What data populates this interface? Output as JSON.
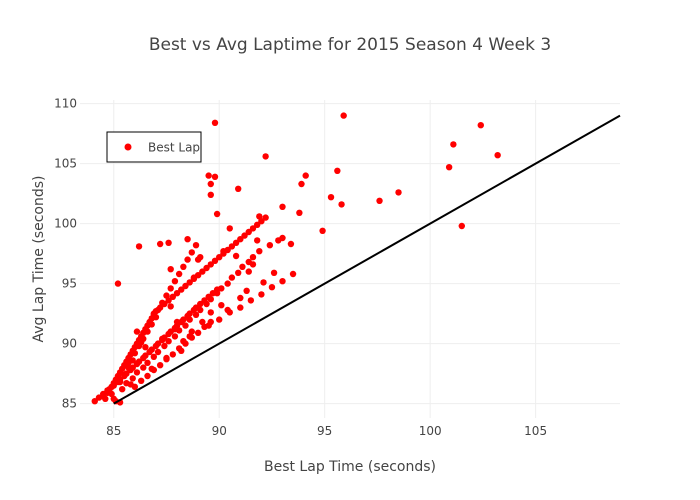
{
  "chart_data": {
    "type": "scatter",
    "title": "Best vs Avg Laptime for 2015 Season 4 Week 3",
    "xlabel": "Best Lap Time (seconds)",
    "ylabel": "Avg Lap Time (seconds)",
    "xlim": [
      83.4,
      109.0
    ],
    "ylim": [
      83.8,
      110.3
    ],
    "xticks": [
      85,
      90,
      95,
      100,
      105
    ],
    "yticks": [
      85,
      90,
      95,
      100,
      105,
      110
    ],
    "grid": true,
    "legend_position": "top-left",
    "reference_line": {
      "x": [
        85,
        109
      ],
      "y": [
        85,
        109
      ],
      "color": "#000000"
    },
    "series": [
      {
        "name": "Best Lap",
        "color": "#ff0000",
        "marker": "circle",
        "x": [
          89.8,
          95.9,
          102.4,
          101.1,
          103.2,
          88.8,
          92.2,
          89.5,
          100.9,
          89.6,
          89.8,
          90.9,
          94.1,
          93.9,
          95.6,
          95.3,
          95.8,
          97.6,
          98.5,
          93.0,
          93.8,
          91.9,
          94.9,
          101.5,
          89.6,
          89.9,
          90.5,
          87.6,
          86.2,
          87.2,
          88.5,
          85.2,
          91.8,
          92.4,
          92.8,
          93.0,
          93.4,
          89.1,
          90.2,
          90.8,
          91.4,
          91.6,
          89.0,
          87.7,
          88.8,
          85.1,
          85.3,
          84.6,
          84.9,
          84.1,
          84.3,
          84.5,
          84.7,
          84.9,
          85.0,
          85.1,
          85.2,
          85.3,
          85.4,
          85.5,
          85.6,
          85.7,
          85.8,
          85.9,
          86.0,
          86.1,
          86.2,
          86.3,
          86.4,
          86.5,
          86.6,
          86.7,
          86.8,
          86.9,
          87.0,
          87.2,
          87.4,
          87.6,
          87.8,
          88.0,
          88.2,
          88.4,
          88.6,
          88.8,
          89.0,
          89.2,
          89.4,
          89.6,
          89.8,
          90.0,
          90.2,
          90.4,
          90.6,
          90.8,
          91.0,
          91.2,
          91.4,
          91.6,
          91.8,
          92.0,
          92.2,
          84.5,
          84.7,
          84.8,
          85.0,
          85.2,
          85.3,
          85.5,
          85.6,
          85.8,
          85.9,
          86.1,
          86.2,
          86.4,
          86.5,
          86.7,
          86.8,
          87.0,
          87.1,
          87.3,
          87.4,
          87.6,
          87.7,
          87.9,
          88.0,
          88.2,
          88.3,
          88.5,
          88.6,
          88.8,
          88.9,
          89.1,
          89.3,
          89.5,
          89.7,
          89.9,
          85.4,
          85.6,
          85.9,
          86.1,
          86.4,
          86.6,
          86.9,
          87.1,
          87.4,
          87.6,
          87.9,
          88.1,
          88.4,
          88.6,
          88.9,
          89.1,
          89.4,
          89.6,
          89.9,
          90.1,
          90.4,
          90.6,
          90.9,
          91.1,
          91.4,
          91.6,
          91.9,
          85.3,
          85.5,
          85.7,
          85.9,
          86.0,
          86.2,
          86.4,
          86.6,
          86.8,
          87.0,
          87.1,
          87.3,
          87.5,
          87.7,
          87.9,
          88.1,
          88.3,
          88.5,
          88.7,
          88.9,
          86.0,
          86.3,
          86.6,
          86.9,
          87.2,
          87.5,
          87.8,
          88.1,
          88.4,
          88.7,
          89.0,
          89.3,
          89.6,
          85.0,
          85.8,
          86.8,
          87.5,
          88.2,
          86.3,
          87.9,
          88.6,
          85.7,
          86.5,
          87.3,
          88.0,
          86.1,
          86.9,
          87.7,
          89.5,
          90.0,
          90.5,
          91.0,
          91.5,
          92.0,
          92.5,
          93.0,
          93.5,
          88.3,
          88.7,
          89.2,
          89.6,
          90.1,
          90.4,
          91.0,
          91.3,
          92.1,
          92.6
        ],
        "y": [
          108.4,
          109.0,
          108.2,
          106.6,
          105.7,
          105.7,
          105.6,
          104.0,
          104.7,
          103.3,
          103.9,
          102.9,
          104.0,
          103.3,
          104.4,
          102.2,
          101.6,
          101.9,
          102.6,
          101.4,
          100.9,
          100.6,
          99.4,
          99.8,
          102.4,
          100.8,
          99.6,
          98.4,
          98.1,
          98.3,
          98.7,
          95.0,
          98.6,
          98.2,
          98.6,
          98.8,
          98.3,
          97.2,
          97.7,
          97.3,
          96.0,
          96.6,
          97.0,
          96.2,
          95.5,
          85.2,
          85.1,
          85.4,
          85.8,
          85.2,
          85.5,
          85.8,
          86.1,
          86.4,
          86.7,
          87.0,
          87.3,
          87.6,
          87.9,
          88.2,
          88.5,
          88.8,
          89.1,
          89.4,
          89.7,
          90.0,
          90.3,
          90.6,
          90.9,
          91.2,
          91.5,
          91.8,
          92.1,
          92.4,
          92.7,
          93.0,
          93.3,
          93.6,
          93.9,
          94.2,
          94.5,
          94.8,
          95.1,
          95.4,
          95.7,
          96.0,
          96.3,
          96.6,
          96.9,
          97.2,
          97.5,
          97.8,
          98.1,
          98.4,
          98.7,
          99.0,
          99.3,
          99.6,
          99.9,
          100.2,
          100.5,
          85.6,
          85.9,
          86.2,
          86.5,
          86.8,
          87.0,
          87.3,
          87.5,
          87.8,
          88.0,
          88.3,
          88.5,
          88.8,
          89.0,
          89.3,
          89.5,
          89.8,
          90.0,
          90.3,
          90.5,
          90.8,
          91.0,
          91.3,
          91.5,
          91.8,
          92.0,
          92.3,
          92.5,
          92.8,
          93.0,
          93.3,
          93.6,
          93.9,
          94.2,
          94.5,
          86.2,
          86.7,
          87.1,
          87.6,
          88.0,
          88.4,
          88.9,
          89.3,
          89.8,
          90.2,
          90.6,
          91.1,
          91.5,
          92.0,
          92.4,
          92.8,
          93.3,
          93.7,
          94.2,
          94.6,
          95.0,
          95.5,
          95.9,
          96.4,
          96.8,
          97.2,
          97.7,
          86.8,
          87.4,
          88.0,
          88.6,
          89.2,
          89.8,
          90.4,
          91.0,
          91.6,
          92.2,
          92.8,
          93.4,
          94.0,
          94.6,
          95.2,
          95.8,
          96.4,
          97.0,
          97.6,
          98.2,
          86.4,
          86.9,
          87.3,
          87.8,
          88.2,
          88.7,
          89.1,
          89.6,
          90.0,
          90.5,
          90.9,
          91.4,
          91.8,
          85.4,
          86.6,
          87.9,
          88.8,
          89.4,
          90.1,
          91.2,
          90.6,
          88.4,
          89.7,
          90.4,
          91.8,
          91.0,
          92.5,
          93.1,
          91.5,
          92.0,
          92.6,
          93.0,
          93.6,
          94.1,
          94.7,
          95.2,
          95.8,
          90.2,
          91.0,
          91.8,
          92.6,
          93.2,
          92.8,
          93.8,
          94.4,
          95.1,
          95.9
        ]
      }
    ]
  }
}
